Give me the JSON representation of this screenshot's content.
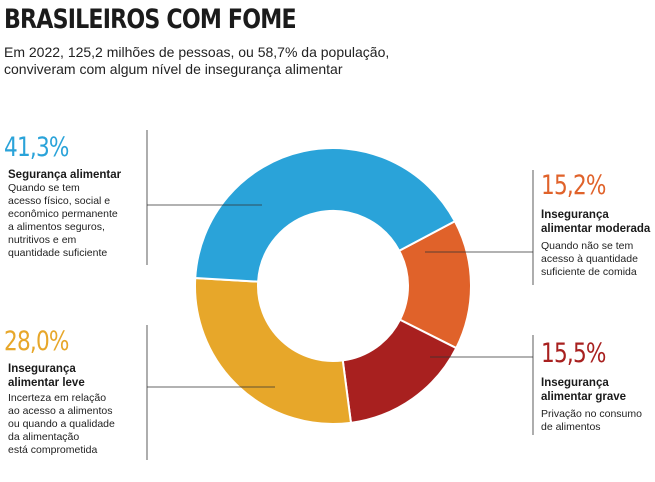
{
  "header": {
    "title": "BRASILEIROS COM FOME",
    "subtitle": "Em 2022, 125,2 milhões de pessoas, ou 58,7% da população, conviveram com algum nível de insegurança alimentar"
  },
  "callouts": {
    "seguranca": {
      "pct": "41,3%",
      "label": "Segurança alimentar",
      "desc": "Quando se tem\nacesso físico, social e\neconômico permanente\na alimentos seguros,\nnutritivos e em\nquantidade suficiente"
    },
    "leve": {
      "pct": "28,0%",
      "label": "Insegurança\nalimentar leve",
      "desc": "Incerteza em relação\nao acesso a alimentos\nou quando a qualidade\nda alimentação\nestá comprometida"
    },
    "moderada": {
      "pct": "15,2%",
      "label": "Insegurança\nalimentar moderada",
      "desc": "Quando não se tem\nacesso à quantidade\nsuficiente de comida"
    },
    "grave": {
      "pct": "15,5%",
      "label": "Insegurança\nalimentar grave",
      "desc": "Privação no consumo\nde alimentos"
    }
  },
  "chart_data": {
    "type": "pie",
    "donut": true,
    "slices": [
      {
        "label": "Insegurança alimentar moderada",
        "value": 15.2,
        "color": "#e0622a"
      },
      {
        "label": "Insegurança alimentar grave",
        "value": 15.5,
        "color": "#a8201f"
      },
      {
        "label": "Insegurança alimentar leve",
        "value": 28.0,
        "color": "#e7a72a"
      },
      {
        "label": "Segurança alimentar",
        "value": 41.3,
        "color": "#2aa3d9"
      }
    ],
    "start_angle_deg": 62
  }
}
